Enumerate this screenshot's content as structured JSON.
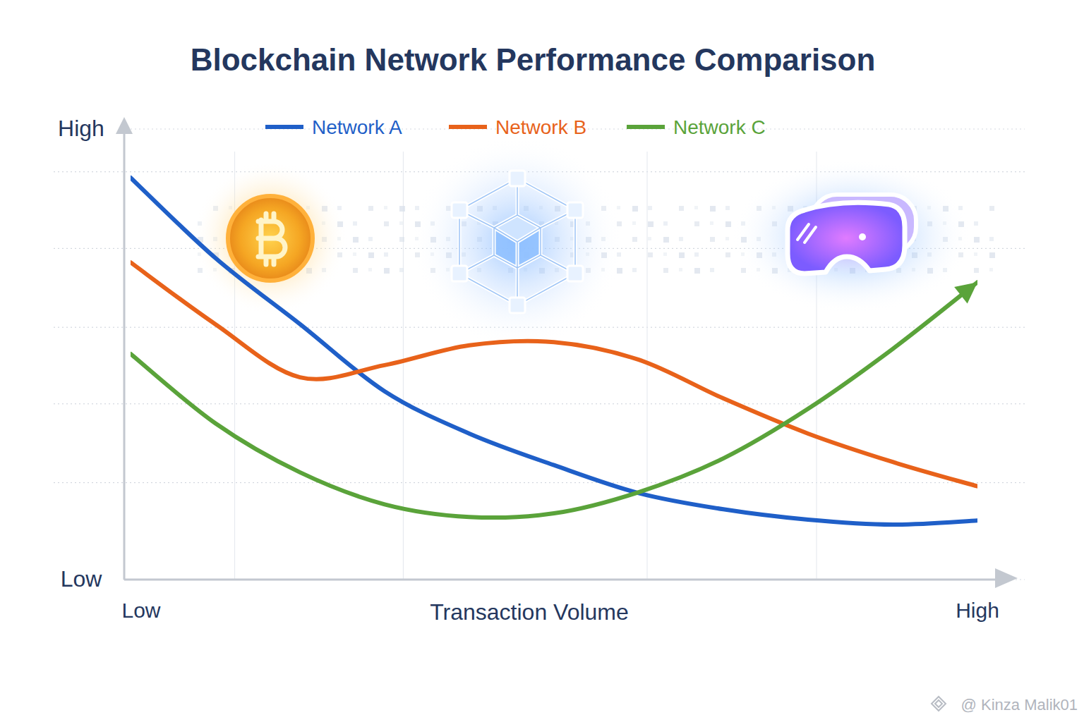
{
  "chart_data": {
    "type": "line",
    "title": "Blockchain Network Performance Comparison",
    "x_label": "Transaction Volume",
    "x": [
      0,
      10,
      20,
      30,
      40,
      50,
      60,
      70,
      80,
      90,
      100
    ],
    "xlim": [
      0,
      100
    ],
    "xticks": [
      {
        "value": 0,
        "label": "Low"
      },
      {
        "value": 100,
        "label": "High"
      }
    ],
    "ylim": [
      0,
      100
    ],
    "yticks": [
      {
        "value": 0,
        "label": "Low"
      },
      {
        "value": 100,
        "label": "High"
      }
    ],
    "grid": true,
    "legend": "top",
    "series": [
      {
        "name": "Network A",
        "color": "#1f5fc8",
        "line_style": "solid",
        "values": [
          89.2,
          71.4,
          56.7,
          41.8,
          32.4,
          25.4,
          19.2,
          15.6,
          13.3,
          12.2,
          13.1
        ]
      },
      {
        "name": "Network B",
        "color": "#e8621a",
        "line_style": "solid",
        "values": [
          70.4,
          56.7,
          44.9,
          47.6,
          52.0,
          52.7,
          48.8,
          40.2,
          32.4,
          26.1,
          20.7
        ]
      },
      {
        "name": "Network C",
        "color": "#5aa33a",
        "line_style": "solid",
        "marker": "arrow",
        "values": [
          50.1,
          34.7,
          23.8,
          16.7,
          13.9,
          14.7,
          19.4,
          26.9,
          37.9,
          51.2,
          66.0
        ]
      }
    ],
    "watermark": "@ Kinza Malik01"
  }
}
